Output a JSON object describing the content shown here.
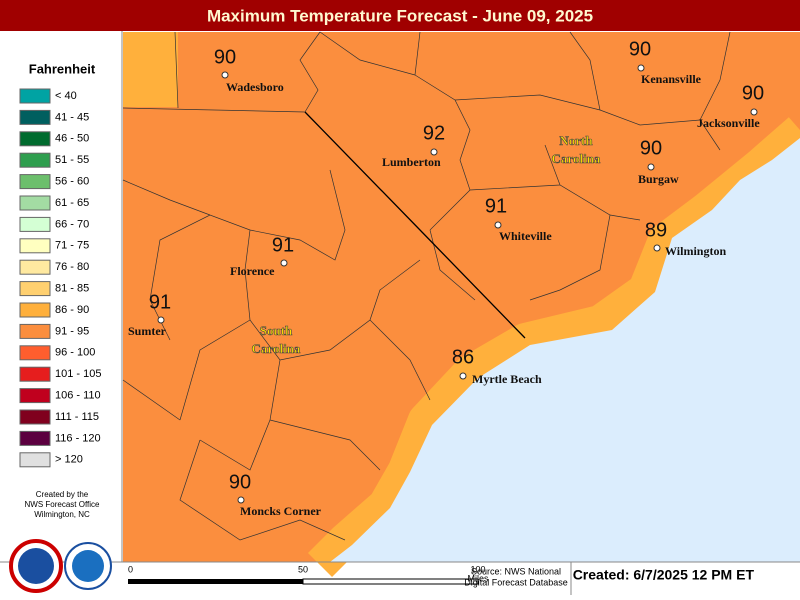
{
  "header": {
    "title": "Maximum Temperature Forecast - June 09, 2025"
  },
  "legend": {
    "title": "Fahrenheit",
    "items": [
      {
        "label": "< 40",
        "color": "#00a3a3"
      },
      {
        "label": "41 - 45",
        "color": "#005f5f"
      },
      {
        "label": "46 - 50",
        "color": "#006b2e"
      },
      {
        "label": "51 - 55",
        "color": "#2e9e4e"
      },
      {
        "label": "56 - 60",
        "color": "#6cbf6c"
      },
      {
        "label": "61 - 65",
        "color": "#a3dca3"
      },
      {
        "label": "66 - 70",
        "color": "#d4ffd4"
      },
      {
        "label": "71 - 75",
        "color": "#ffffc0"
      },
      {
        "label": "76 - 80",
        "color": "#ffe9a0"
      },
      {
        "label": "81 - 85",
        "color": "#ffd070"
      },
      {
        "label": "86 - 90",
        "color": "#ffb03c"
      },
      {
        "label": "91 - 95",
        "color": "#fb8e3e"
      },
      {
        "label": "96 - 100",
        "color": "#ff5e2e"
      },
      {
        "label": "101 - 105",
        "color": "#e61e1e"
      },
      {
        "label": "106 - 110",
        "color": "#c0001e"
      },
      {
        "label": "111 - 115",
        "color": "#80001e"
      },
      {
        "label": "116 - 120",
        "color": "#5c0040"
      },
      {
        "label": "> 120",
        "color": "#e0e0e0"
      }
    ]
  },
  "credit": [
    "Created by the",
    "NWS Forecast Office",
    "Wilmington, NC"
  ],
  "states": [
    {
      "lines": [
        "North",
        "Carolina"
      ]
    },
    {
      "lines": [
        "South",
        "Carolina"
      ]
    }
  ],
  "cities": [
    {
      "name": "Wadesboro",
      "temp": "90"
    },
    {
      "name": "Kenansville",
      "temp": "90"
    },
    {
      "name": "Jacksonville",
      "temp": "90"
    },
    {
      "name": "Lumberton",
      "temp": "92"
    },
    {
      "name": "Burgaw",
      "temp": "90"
    },
    {
      "name": "Whiteville",
      "temp": "91"
    },
    {
      "name": "Wilmington",
      "temp": "89"
    },
    {
      "name": "Florence",
      "temp": "91"
    },
    {
      "name": "Sumter",
      "temp": "91"
    },
    {
      "name": "Myrtle Beach",
      "temp": "86"
    },
    {
      "name": "Moncks Corner",
      "temp": "90"
    }
  ],
  "scale": {
    "labels": [
      "0",
      "50",
      "100"
    ],
    "unit": "Miles"
  },
  "source": [
    "Source: NWS National",
    "Digital Forecast Database"
  ],
  "created": "Created: 6/7/2025 12 PM ET"
}
